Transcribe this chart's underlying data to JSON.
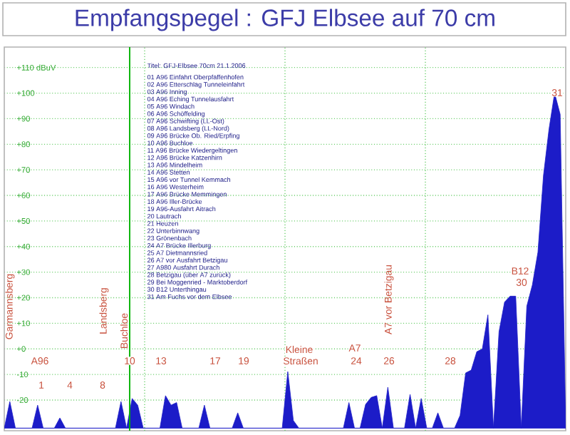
{
  "chart_data": {
    "type": "area",
    "title": "Empfangspegel : GFJ Elbsee auf 70 cm",
    "categories": [
      null,
      null,
      null,
      null,
      null,
      null,
      null,
      null,
      null,
      null,
      null,
      null,
      null,
      null,
      null,
      null,
      null,
      null,
      null,
      null,
      null,
      null,
      null,
      null,
      null,
      null,
      null,
      null,
      null,
      null,
      null,
      null,
      null,
      null,
      null,
      null,
      null,
      null,
      null,
      null,
      null,
      null,
      null,
      null,
      null,
      null,
      null,
      null,
      null,
      null,
      null,
      null,
      null,
      null,
      null,
      null,
      null,
      null,
      null,
      null,
      null,
      null,
      null,
      null,
      null,
      null,
      null,
      null,
      null,
      null,
      null,
      null,
      null,
      null,
      null,
      null,
      null,
      null,
      null,
      null,
      null,
      null,
      null,
      null,
      null,
      null,
      null,
      null,
      null,
      null,
      null,
      null,
      null,
      null,
      null,
      null,
      null,
      null,
      null,
      null,
      null,
      null
    ],
    "ylim": [
      -32,
      118
    ],
    "yticks": [
      {
        "value": 110,
        "label": "+110 dBuV"
      },
      {
        "value": 100,
        "label": "+100"
      },
      {
        "value": 90,
        "label": "+90"
      },
      {
        "value": 80,
        "label": "+80"
      },
      {
        "value": 70,
        "label": "+70"
      },
      {
        "value": 60,
        "label": "+60"
      },
      {
        "value": 50,
        "label": "+50"
      },
      {
        "value": 40,
        "label": "+40"
      },
      {
        "value": 30,
        "label": "+30"
      },
      {
        "value": 20,
        "label": "+20"
      },
      {
        "value": 10,
        "label": "+10"
      },
      {
        "value": 0,
        "label": "+0"
      },
      {
        "value": -10,
        "label": "-10"
      },
      {
        "value": -20,
        "label": "-20"
      }
    ],
    "tick_labels": "y",
    "grid": true,
    "series": [
      {
        "color": "#1c1cc8",
        "values": [
          -31,
          -20.6,
          -31,
          -31,
          -31,
          -31,
          -22,
          -31,
          -31,
          -31,
          -27,
          -31,
          -31,
          -31,
          -31,
          -31,
          -31,
          -31,
          -31,
          -31,
          -31,
          -20.6,
          -31,
          -19.4,
          -22,
          -31,
          -31,
          -31,
          -31,
          -18.3,
          -22,
          -21,
          -31,
          -31,
          -31,
          -31,
          -22,
          -31,
          -31,
          -31,
          -31,
          -31,
          -25,
          -31,
          -31,
          -31,
          -31,
          -31,
          -31,
          -31,
          -31,
          -8.9,
          -28,
          -31,
          -31,
          -31,
          -31,
          -31,
          -31,
          -31,
          -31,
          -31,
          -21,
          -31,
          -31,
          -21.7,
          -19,
          -18.3,
          -31,
          -15,
          -31,
          -31,
          -31,
          -17.8,
          -31,
          -19.4,
          -31,
          -31,
          -25,
          -31,
          -31,
          -31,
          -26,
          -9.4,
          -8.3,
          -1.1,
          0,
          13.3,
          -31,
          6.7,
          18.3,
          20.6,
          20.6,
          -31,
          16.7,
          25,
          37.8,
          67.8,
          86,
          100,
          91.7,
          -31
        ]
      }
    ],
    "annotations": [
      "Titel: GFJ-Elbsee 70cm 21.1.2006",
      "01 A96 Einfahrt Oberpfaffenhofen",
      "02 A96 Etterschlag Tunneleinfahrt",
      "03 A96 Inning",
      "04 A96 Eching Tunnelausfahrt",
      "05 A96 Windach",
      "06 A96 Schöffelding",
      "07 A96 Schwifting (LL-Ost)",
      "08 A96 Landsberg (LL-Nord)",
      "09 A96 Brücke Ob. Ried/Erpfing",
      "10 A96 Buchloe",
      "11 A96 Brücke Wiedergeltingen",
      "12 A96 Brücke Katzenhirn",
      "13 A96 Mindelheim",
      "14 A96 Stetten",
      "15 A96 vor Tunnel Kemmach",
      "16 A96 Westerheim",
      "17 A96 Brücke Memmingen",
      "18 A96 Iller-Brücke",
      "19 A96-Ausfahrt Aitrach",
      "20 Lautrach",
      "21 Heuzen",
      "22 Unterbinnwang",
      "23 Grönenbach",
      "24 A7 Brücke Illerburg",
      "25 A7 Dietmannsried",
      "26 A7 vor Ausfahrt Betzigau",
      "27 A980 Ausfahrt Durach",
      "28 Betzigau (über A7 zurück)",
      "29 Bei Moggenried - Marktoberdorf",
      "30 B12 Unterthingau",
      "31 Am Fuchs vor dem Elbsee",
      "A96",
      "1",
      "4",
      "8",
      "10",
      "13",
      "17",
      "19",
      "Kleine",
      "Straßen",
      "A7",
      "24",
      "26",
      "28",
      "B12",
      "30",
      "31",
      "Garmannsberg",
      "Landsberg",
      "Buchloe",
      "A7 vor Betzigau"
    ]
  }
}
